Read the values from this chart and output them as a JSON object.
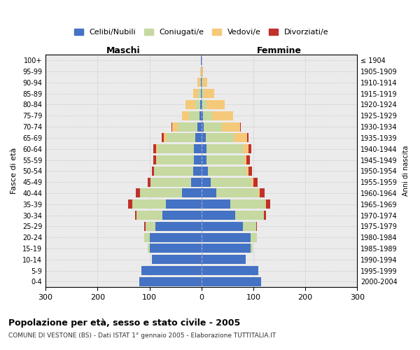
{
  "age_groups": [
    "100+",
    "95-99",
    "90-94",
    "85-89",
    "80-84",
    "75-79",
    "70-74",
    "65-69",
    "60-64",
    "55-59",
    "50-54",
    "45-49",
    "40-44",
    "35-39",
    "30-34",
    "25-29",
    "20-24",
    "15-19",
    "10-14",
    "5-9",
    "0-4"
  ],
  "birth_years": [
    "≤ 1904",
    "1905-1909",
    "1910-1914",
    "1915-1919",
    "1920-1924",
    "1925-1929",
    "1930-1934",
    "1935-1939",
    "1940-1944",
    "1945-1949",
    "1950-1954",
    "1955-1959",
    "1960-1964",
    "1965-1969",
    "1970-1974",
    "1975-1979",
    "1980-1984",
    "1985-1989",
    "1990-1994",
    "1995-1999",
    "2000-2004"
  ],
  "colors": {
    "celibi": "#4472c4",
    "coniugati": "#c5d9a0",
    "vedovi": "#f5c97a",
    "divorziati": "#c0312b"
  },
  "maschi_celibi": [
    1,
    0,
    1,
    1,
    2,
    4,
    8,
    12,
    15,
    14,
    16,
    20,
    38,
    68,
    75,
    88,
    100,
    100,
    95,
    115,
    120
  ],
  "maschi_coniugati": [
    0,
    0,
    2,
    5,
    10,
    20,
    38,
    55,
    70,
    72,
    75,
    78,
    80,
    65,
    50,
    20,
    10,
    3,
    0,
    0,
    0
  ],
  "maschi_vedovi": [
    0,
    2,
    5,
    10,
    18,
    14,
    10,
    5,
    2,
    1,
    0,
    0,
    0,
    0,
    0,
    0,
    0,
    0,
    0,
    0,
    0
  ],
  "maschi_divorziati": [
    0,
    0,
    0,
    0,
    0,
    0,
    2,
    4,
    5,
    5,
    5,
    6,
    8,
    8,
    3,
    2,
    0,
    0,
    0,
    0,
    0
  ],
  "femmine_nubili": [
    0,
    0,
    1,
    1,
    2,
    3,
    5,
    8,
    10,
    10,
    12,
    18,
    28,
    55,
    65,
    80,
    95,
    95,
    85,
    110,
    115
  ],
  "femmine_coniugate": [
    0,
    0,
    2,
    3,
    8,
    18,
    35,
    55,
    70,
    72,
    75,
    78,
    82,
    68,
    55,
    25,
    12,
    4,
    0,
    0,
    0
  ],
  "femmine_vedove": [
    1,
    3,
    8,
    20,
    35,
    40,
    35,
    25,
    10,
    5,
    4,
    4,
    2,
    1,
    0,
    0,
    0,
    0,
    0,
    0,
    0
  ],
  "femmine_divorziate": [
    0,
    0,
    0,
    0,
    0,
    0,
    1,
    2,
    6,
    6,
    6,
    8,
    10,
    8,
    5,
    2,
    0,
    0,
    0,
    0,
    0
  ],
  "xlim": 300,
  "title": "Popolazione per età, sesso e stato civile - 2005",
  "subtitle": "COMUNE DI VESTONE (BS) - Dati ISTAT 1° gennaio 2005 - Elaborazione TUTTITALIA.IT",
  "ylabel_left": "Fasce di età",
  "ylabel_right": "Anni di nascita",
  "xlabel_maschi": "Maschi",
  "xlabel_femmine": "Femmine",
  "legend_labels": [
    "Celibi/Nubili",
    "Coniugati/e",
    "Vedovi/e",
    "Divorziati/e"
  ]
}
